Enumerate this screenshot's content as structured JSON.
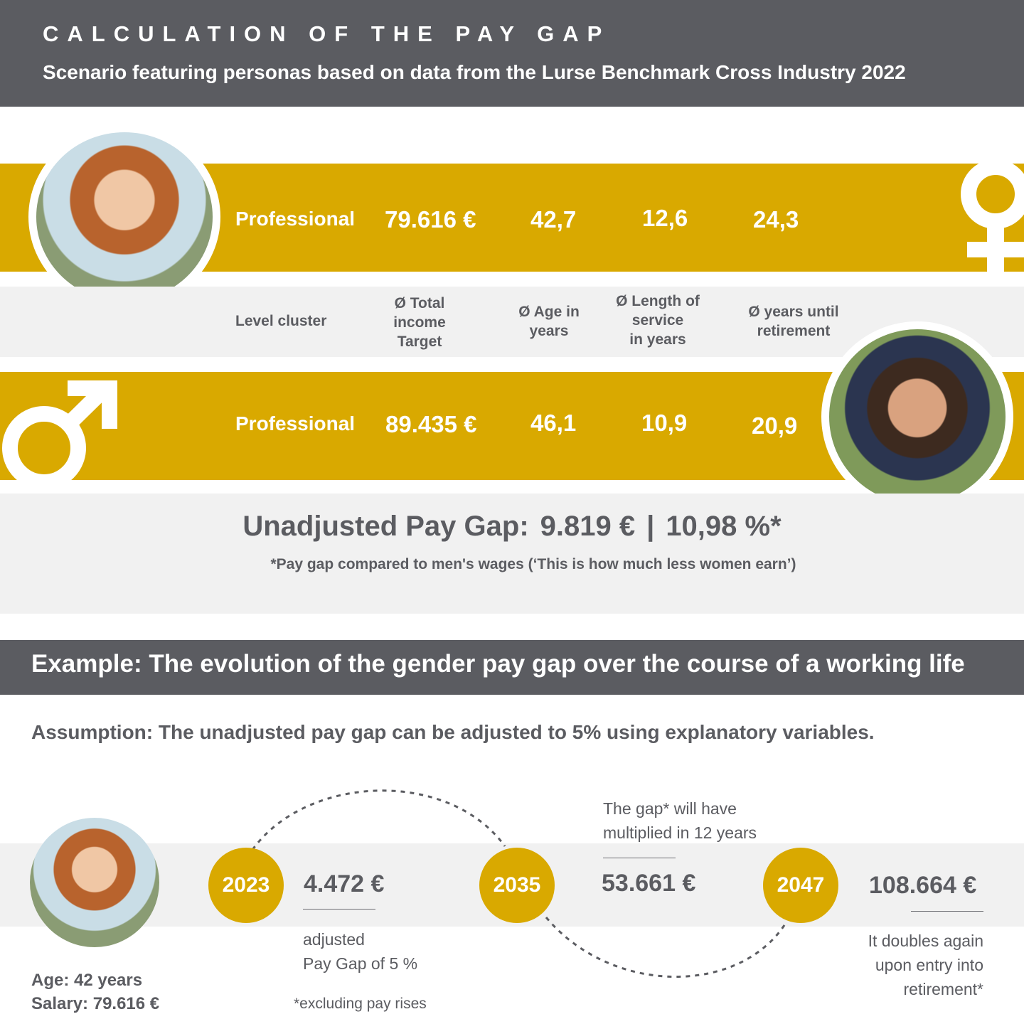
{
  "colors": {
    "gold": "#d9a900",
    "dark": "#5b5c61",
    "light": "#f1f1f1",
    "text": "#5b5c61"
  },
  "header": {
    "title": "CALCULATION OF THE PAY GAP",
    "subtitle": "Scenario featuring personas based on data from the Lurse Benchmark Cross Industry 2022"
  },
  "icons": {
    "female": "female-symbol",
    "male": "male-symbol"
  },
  "female": {
    "level": "Professional",
    "income": "79.616 €",
    "age": "42,7",
    "service": "12,6",
    "retirement": "24,3"
  },
  "labels": {
    "level": "Level cluster",
    "income": [
      "Ø Total",
      "income",
      "Target"
    ],
    "age": [
      "Ø Age in",
      "years"
    ],
    "service": [
      "Ø Length of",
      "service",
      "in years"
    ],
    "retirement": [
      "Ø years until",
      "retirement"
    ]
  },
  "male": {
    "level": "Professional",
    "income": "89.435 €",
    "age": "46,1",
    "service": "10,9",
    "retirement": "20,9"
  },
  "gap": {
    "label": "Unadjusted Pay Gap:",
    "amount": "9.819 €",
    "separator": "|",
    "percent": "10,98 %*",
    "note": "*Pay gap compared to men's wages (‘This is how much less women earn’)"
  },
  "example": {
    "title": "Example: The evolution of the gender pay gap over the course of a working life",
    "assumption": "Assumption: The unadjusted pay gap can be adjusted to 5% using explanatory variables."
  },
  "persona": {
    "age": "Age: 42 years",
    "salary": "Salary: 79.616 €"
  },
  "timeline": [
    {
      "year": "2023",
      "amount": "4.472 €",
      "note": [
        "adjusted",
        "Pay Gap of 5 %"
      ]
    },
    {
      "year": "2035",
      "amount": "53.661 €",
      "note": [
        "The gap* will have",
        "multiplied in 12 years"
      ]
    },
    {
      "year": "2047",
      "amount": "108.664 €",
      "note": [
        "It doubles again",
        "upon entry into",
        "retirement*"
      ]
    }
  ],
  "footnote": "*excluding pay rises"
}
